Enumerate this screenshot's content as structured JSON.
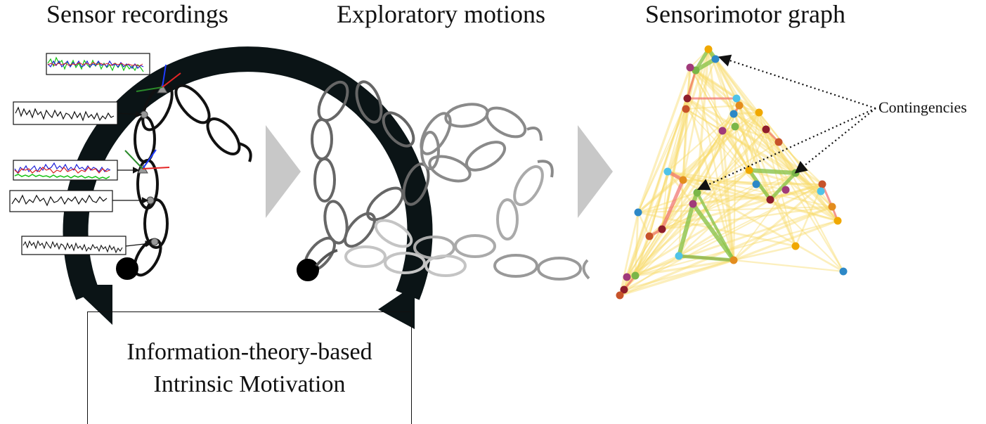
{
  "headings": {
    "sensor": "Sensor recordings",
    "motions": "Exploratory motions",
    "graph": "Sensorimotor graph"
  },
  "motivation": {
    "line1": "Information-theory-based",
    "line2": "Intrinsic Motivation"
  },
  "annotation": {
    "contingencies": "Contingencies"
  },
  "colors": {
    "loop_arrow": "#0b1416",
    "process_arrow": "#c8c8c8",
    "contingency_edge": "#8bc34a",
    "strong_edge": "#ef6f6a",
    "weak_edge": "#f9dc6c",
    "node_palette": [
      "#f0a800",
      "#2d88c7",
      "#7ab648",
      "#a03a7a",
      "#8f1e2b",
      "#c7532a",
      "#4fc3e8",
      "#e38c1e"
    ]
  }
}
